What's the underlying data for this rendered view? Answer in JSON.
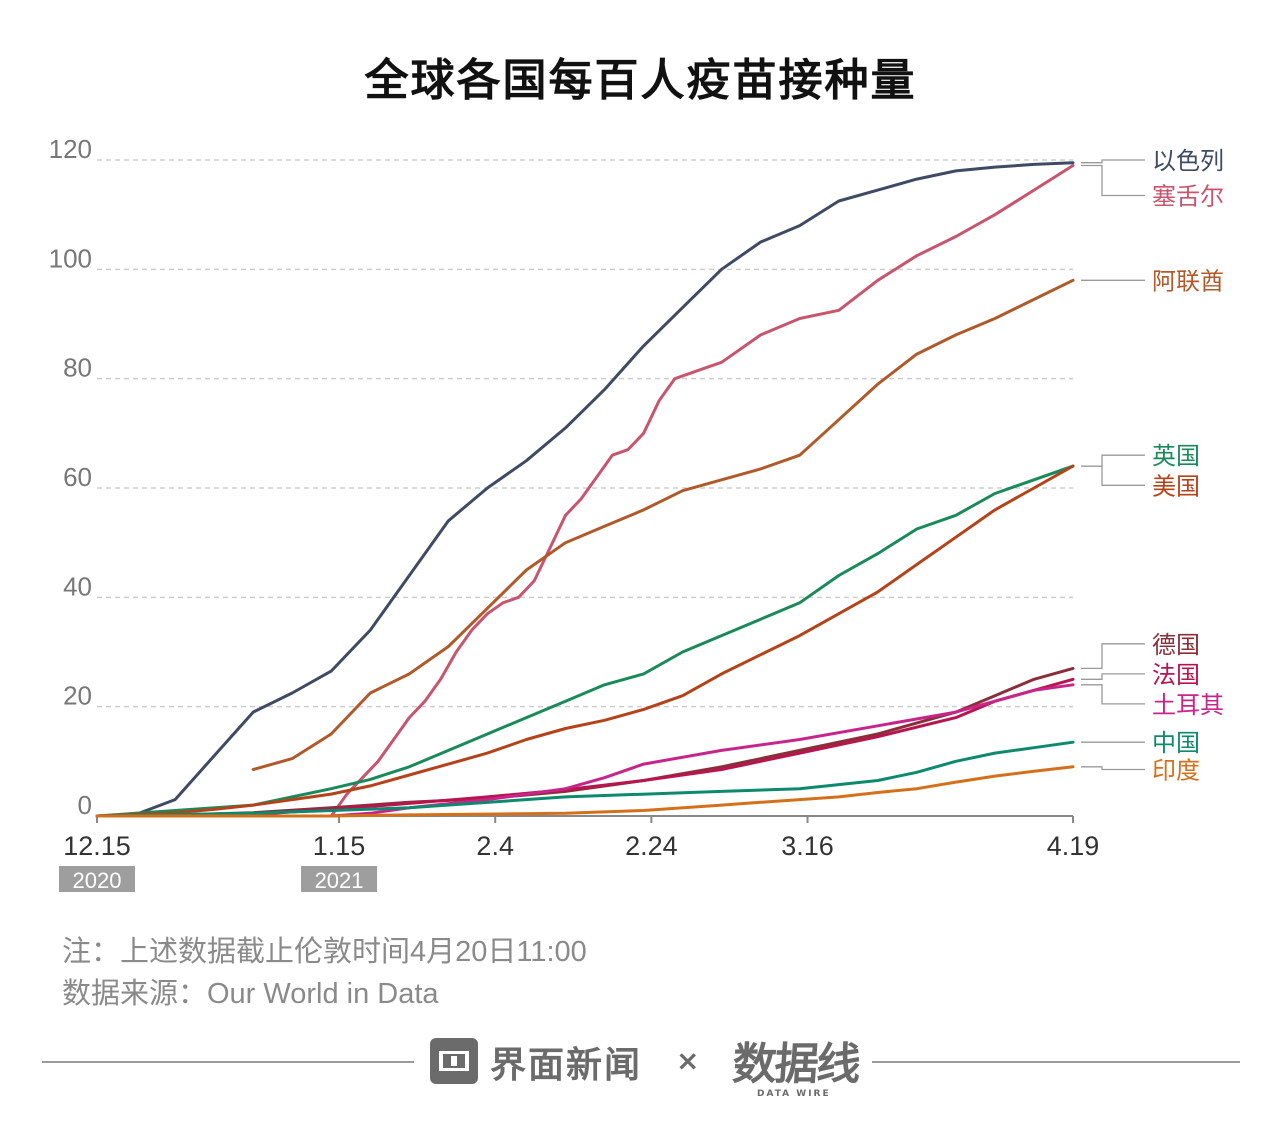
{
  "title": "全球各国每百人疫苗接种量",
  "notes": {
    "line1": "注：上述数据截止伦敦时间4月20日11:00",
    "line2": "数据来源：Our World in Data"
  },
  "footer": {
    "brand_left": "界面新闻",
    "times": "×",
    "brand_right": "数据线",
    "brand_right_sub": "DATA WIRE"
  },
  "colors": {
    "grid": "#cfcfcf",
    "axis_text": "#777777",
    "year_badge_bg": "#9e9e9e"
  },
  "chart_data": {
    "type": "line",
    "title": "全球各国每百人疫苗接种量",
    "xlabel": "",
    "ylabel": "",
    "ylim": [
      0,
      120
    ],
    "yticks": [
      0,
      20,
      40,
      60,
      80,
      100,
      120
    ],
    "x_domain_days": [
      0,
      125
    ],
    "x_ticks": [
      {
        "day": 0,
        "label": "12.15",
        "year": "2020"
      },
      {
        "day": 31,
        "label": "1.15",
        "year": "2021"
      },
      {
        "day": 51,
        "label": "2.4",
        "year": ""
      },
      {
        "day": 71,
        "label": "2.24",
        "year": ""
      },
      {
        "day": 91,
        "label": "3.16",
        "year": ""
      },
      {
        "day": 125,
        "label": "4.19",
        "year": ""
      }
    ],
    "series": [
      {
        "name": "以色列",
        "color": "#3f4b63",
        "labelY": 120,
        "x": [
          0,
          5,
          10,
          15,
          20,
          25,
          30,
          35,
          40,
          45,
          50,
          55,
          60,
          65,
          70,
          75,
          80,
          85,
          90,
          95,
          100,
          105,
          110,
          115,
          120,
          125
        ],
        "values": [
          0,
          0.3,
          3,
          11,
          19,
          22.5,
          26.5,
          34,
          44,
          54,
          60,
          65,
          71,
          78,
          86,
          93,
          100,
          105,
          108,
          112.5,
          114.5,
          116.5,
          118,
          118.7,
          119.2,
          119.5
        ]
      },
      {
        "name": "塞舌尔",
        "color": "#c8556e",
        "labelY": 113.5,
        "x": [
          27,
          30,
          32,
          34,
          36,
          38,
          40,
          42,
          44,
          46,
          48,
          50,
          52,
          54,
          56,
          58,
          60,
          62,
          64,
          66,
          68,
          70,
          72,
          74,
          76,
          78,
          80,
          85,
          90,
          95,
          100,
          105,
          110,
          115,
          120,
          125
        ],
        "values": [
          0,
          0,
          4,
          7,
          10,
          14,
          18,
          21,
          25,
          30,
          34,
          37,
          39,
          40,
          43,
          49,
          55,
          58,
          62,
          66,
          67,
          70,
          76,
          80,
          81,
          82,
          83,
          88,
          91,
          92.5,
          98,
          102.5,
          106,
          110,
          114.5,
          119
        ]
      },
      {
        "name": "阿联酋",
        "color": "#b05a2c",
        "labelY": 98,
        "x": [
          20,
          25,
          30,
          35,
          40,
          45,
          50,
          55,
          60,
          65,
          70,
          75,
          80,
          85,
          90,
          95,
          100,
          105,
          110,
          115,
          120,
          125
        ],
        "values": [
          8.5,
          10.5,
          15,
          22.5,
          26,
          31,
          38,
          45,
          50,
          53,
          56,
          59.5,
          61.5,
          63.5,
          66,
          72.5,
          79,
          84.5,
          88,
          91,
          94.5,
          98
        ]
      },
      {
        "name": "英国",
        "color": "#1a8a5a",
        "labelY": 66,
        "x": [
          0,
          10,
          20,
          25,
          30,
          35,
          40,
          45,
          50,
          55,
          60,
          65,
          70,
          75,
          80,
          85,
          90,
          95,
          100,
          105,
          110,
          115,
          120,
          125
        ],
        "values": [
          0,
          1,
          2,
          3.5,
          5,
          6.7,
          9,
          12,
          15,
          18,
          21,
          24,
          26,
          30,
          33,
          36,
          39,
          44,
          48,
          52.5,
          55,
          59,
          61.5,
          64
        ]
      },
      {
        "name": "美国",
        "color": "#b5431a",
        "labelY": 60.5,
        "x": [
          0,
          5,
          10,
          15,
          20,
          25,
          30,
          35,
          40,
          45,
          50,
          55,
          60,
          65,
          70,
          75,
          80,
          85,
          90,
          95,
          100,
          105,
          110,
          115,
          120,
          125
        ],
        "values": [
          0,
          0.3,
          0.6,
          1.2,
          2,
          3,
          4,
          5.5,
          7.5,
          9.5,
          11.5,
          14,
          16,
          17.5,
          19.5,
          22,
          26,
          29.5,
          33,
          37,
          41,
          46,
          51,
          56,
          60,
          64
        ]
      },
      {
        "name": "德国",
        "color": "#8a2f3a",
        "labelY": 31.5,
        "x": [
          0,
          10,
          20,
          30,
          40,
          50,
          60,
          70,
          80,
          90,
          100,
          110,
          115,
          120,
          125
        ],
        "values": [
          0,
          0.2,
          0.6,
          1.5,
          2.5,
          3.2,
          4.5,
          6.5,
          9,
          12,
          15,
          19,
          22,
          25,
          27
        ]
      },
      {
        "name": "法国",
        "color": "#b8154f",
        "labelY": 26,
        "x": [
          0,
          10,
          20,
          30,
          40,
          50,
          60,
          70,
          80,
          90,
          100,
          110,
          115,
          120,
          125
        ],
        "values": [
          0,
          0.1,
          0.3,
          1.2,
          2.3,
          3.5,
          4.8,
          6.5,
          8.5,
          11.5,
          14.5,
          18,
          21,
          23,
          25
        ]
      },
      {
        "name": "土耳其",
        "color": "#c8258a",
        "labelY": 20.5,
        "x": [
          0,
          10,
          20,
          30,
          35,
          40,
          50,
          60,
          65,
          70,
          80,
          90,
          100,
          110,
          115,
          120,
          125
        ],
        "values": [
          0,
          0,
          0,
          0,
          0.5,
          1.5,
          3,
          5,
          7,
          9.5,
          12,
          14,
          16.5,
          19,
          21,
          23,
          24
        ]
      },
      {
        "name": "中国",
        "color": "#0d8a6e",
        "labelY": 13.5,
        "x": [
          0,
          20,
          40,
          60,
          80,
          90,
          100,
          105,
          110,
          115,
          120,
          125
        ],
        "values": [
          0,
          0.5,
          1.5,
          3.5,
          4.5,
          5,
          6.5,
          8,
          10,
          11.5,
          12.5,
          13.5
        ]
      },
      {
        "name": "印度",
        "color": "#d4701a",
        "labelY": 8.5,
        "x": [
          0,
          30,
          40,
          60,
          70,
          80,
          85,
          90,
          95,
          100,
          105,
          110,
          115,
          120,
          125
        ],
        "values": [
          0,
          0,
          0.2,
          0.5,
          1,
          2,
          2.5,
          3,
          3.5,
          4.3,
          5,
          6.2,
          7.3,
          8.2,
          9
        ]
      }
    ]
  }
}
